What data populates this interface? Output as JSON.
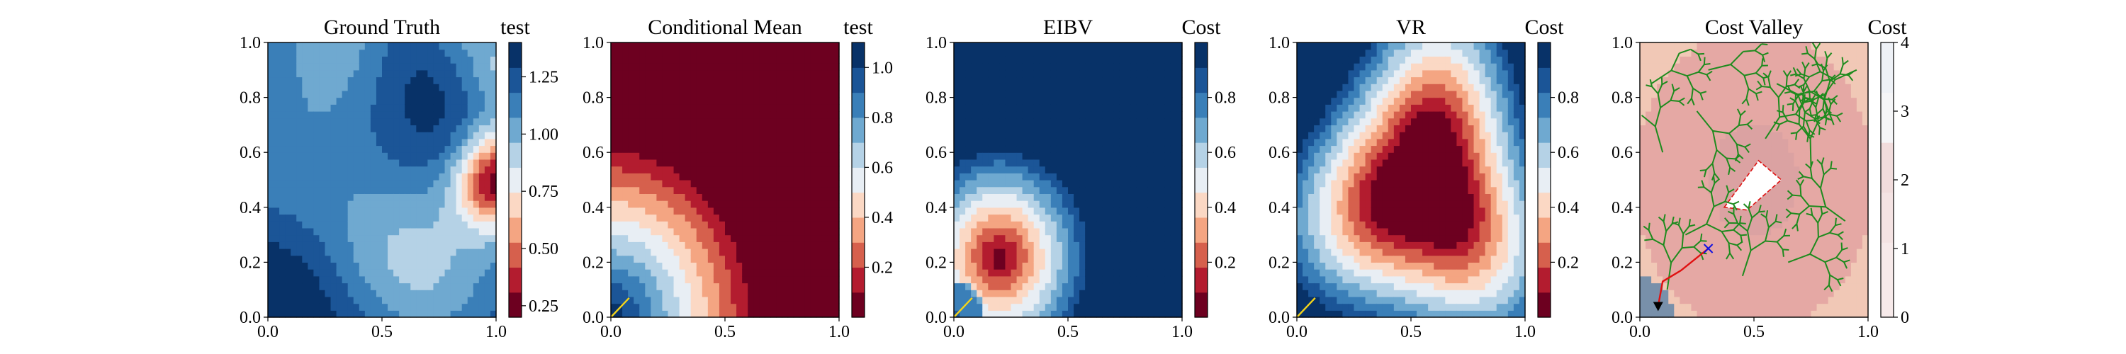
{
  "figure": {
    "panels": [
      {
        "title": "Ground Truth",
        "colorbar_label": "test"
      },
      {
        "title": "Conditional Mean",
        "colorbar_label": "test"
      },
      {
        "title": "EIBV",
        "colorbar_label": "Cost"
      },
      {
        "title": "VR",
        "colorbar_label": "Cost"
      },
      {
        "title": "Cost Valley",
        "colorbar_label": "Cost"
      }
    ]
  },
  "chart_data": [
    {
      "type": "heatmap",
      "title": "Ground Truth",
      "xlim": [
        0,
        1
      ],
      "ylim": [
        0,
        1
      ],
      "x_ticks": [
        "0.0",
        "0.5",
        "1.0"
      ],
      "y_ticks": [
        "0.0",
        "0.2",
        "0.4",
        "0.6",
        "0.8",
        "1.0"
      ],
      "colormap": "RdBu",
      "colorbar_label": "test",
      "colorbar_range": [
        0.2,
        1.4
      ],
      "colorbar_ticks": [
        "0.25",
        "0.50",
        "0.75",
        "1.00",
        "1.25"
      ],
      "colorbar_tick_values": [
        0.25,
        0.5,
        0.75,
        1.0,
        1.25
      ],
      "field": "spatially correlated salinity-like field, mostly 0.9–1.3, with a low-value core (~0.25) near x=1.0, y=0.5"
    },
    {
      "type": "heatmap",
      "title": "Conditional Mean",
      "xlim": [
        0,
        1
      ],
      "ylim": [
        0,
        1
      ],
      "x_ticks": [
        "0.0",
        "0.5",
        "1.0"
      ],
      "y_ticks": [
        "0.0",
        "0.2",
        "0.4",
        "0.6",
        "0.8",
        "1.0"
      ],
      "colormap": "RdBu",
      "colorbar_label": "test",
      "colorbar_range": [
        0.0,
        1.1
      ],
      "colorbar_ticks": [
        "0.2",
        "0.4",
        "0.6",
        "0.8",
        "1.0"
      ],
      "colorbar_tick_values": [
        0.2,
        0.4,
        0.6,
        0.8,
        1.0
      ],
      "field": "concentric bands centred at origin; high (~1.0) near (0,0), decreasing outward to ~0 beyond radius 0.65",
      "path": [
        [
          0.0,
          0.0
        ],
        [
          0.08,
          0.07
        ]
      ]
    },
    {
      "type": "heatmap",
      "title": "EIBV",
      "xlim": [
        0,
        1
      ],
      "ylim": [
        0,
        1
      ],
      "x_ticks": [
        "0.0",
        "0.5",
        "1.0"
      ],
      "y_ticks": [
        "0.0",
        "0.2",
        "0.4",
        "0.6",
        "0.8",
        "1.0"
      ],
      "colormap": "RdBu",
      "colorbar_label": "Cost",
      "colorbar_range": [
        0.0,
        1.0
      ],
      "colorbar_ticks": [
        "0.2",
        "0.4",
        "0.6",
        "0.8"
      ],
      "colorbar_tick_values": [
        0.2,
        0.4,
        0.6,
        0.8
      ],
      "field": "cost ~1 everywhere except a ring near radius 0.2–0.55 around the origin, minimum (~0) around (0.2, 0.22)",
      "path": [
        [
          0.0,
          0.0
        ],
        [
          0.08,
          0.07
        ]
      ]
    },
    {
      "type": "heatmap",
      "title": "VR",
      "xlim": [
        0,
        1
      ],
      "ylim": [
        0,
        1
      ],
      "x_ticks": [
        "0.0",
        "0.5",
        "1.0"
      ],
      "y_ticks": [
        "0.0",
        "0.2",
        "0.4",
        "0.6",
        "0.8",
        "1.0"
      ],
      "colormap": "RdBu",
      "colorbar_label": "Cost",
      "colorbar_range": [
        0.0,
        1.0
      ],
      "colorbar_ticks": [
        "0.2",
        "0.4",
        "0.6",
        "0.8"
      ],
      "colorbar_tick_values": [
        0.2,
        0.4,
        0.6,
        0.8
      ],
      "field": "cost minimum (~0) in a large rounded-triangle region centred near (0.55, 0.5), rising toward edges; highest near origin",
      "path": [
        [
          0.0,
          0.0
        ],
        [
          0.08,
          0.07
        ]
      ]
    },
    {
      "type": "heatmap",
      "title": "Cost Valley",
      "xlim": [
        0,
        1
      ],
      "ylim": [
        0,
        1
      ],
      "x_ticks": [
        "0.0",
        "0.5",
        "1.0"
      ],
      "y_ticks": [
        "0.0",
        "0.2",
        "0.4",
        "0.6",
        "0.8",
        "1.0"
      ],
      "colormap": "RdBu",
      "colorbar_label": "Cost",
      "colorbar_range": [
        0,
        4
      ],
      "colorbar_ticks": [
        "0",
        "1",
        "2",
        "3",
        "4"
      ],
      "colorbar_tick_values": [
        0,
        1,
        2,
        3,
        4
      ],
      "field": "summed cost; low (~1) in a large rounded region, white high-cost obstacle polygon near (0.55, 0.45)",
      "obstacle_polygon": [
        [
          0.37,
          0.4
        ],
        [
          0.52,
          0.57
        ],
        [
          0.62,
          0.5
        ],
        [
          0.47,
          0.39
        ]
      ],
      "tree": "green RRT* branches covering the domain",
      "trajectory": [
        [
          0.08,
          0.04
        ],
        [
          0.1,
          0.13
        ],
        [
          0.18,
          0.17
        ],
        [
          0.3,
          0.25
        ]
      ],
      "start_marker": [
        0.08,
        0.04
      ],
      "target_marker": [
        0.3,
        0.25
      ]
    }
  ]
}
